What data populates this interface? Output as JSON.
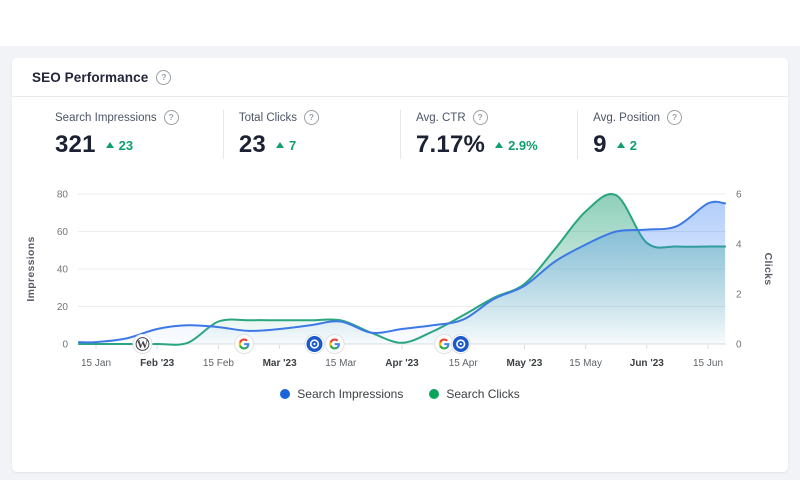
{
  "icons": {
    "help": "?"
  },
  "header": {
    "title": "SEO Performance"
  },
  "kpis": [
    {
      "label": "Search Impressions",
      "value": "321",
      "delta": "23"
    },
    {
      "label": "Total Clicks",
      "value": "23",
      "delta": "7"
    },
    {
      "label": "Avg. CTR",
      "value": "7.17%",
      "delta": "2.9%"
    },
    {
      "label": "Avg. Position",
      "value": "9",
      "delta": "2"
    }
  ],
  "colors": {
    "page_band": "#f2f3f6",
    "delta_green": "#0e9f6e",
    "impressions_line": "#3d79e6",
    "impressions_dot": "#1a63d8",
    "clicks_line": "#2aa580",
    "clicks_dot": "#0aa45c",
    "gridline": "#ebedf0",
    "baseline": "#d9dce1"
  },
  "chart_data": {
    "type": "area",
    "title": "",
    "grid": "horizontal",
    "x_ticks": [
      {
        "label": "15 Jan",
        "bold": false
      },
      {
        "label": "Feb '23",
        "bold": true
      },
      {
        "label": "15 Feb",
        "bold": false
      },
      {
        "label": "Mar '23",
        "bold": true
      },
      {
        "label": "15 Mar",
        "bold": false
      },
      {
        "label": "Apr '23",
        "bold": true
      },
      {
        "label": "15 Apr",
        "bold": false
      },
      {
        "label": "May '23",
        "bold": true
      },
      {
        "label": "15 May",
        "bold": false
      },
      {
        "label": "Jun '23",
        "bold": true
      },
      {
        "label": "15 Jun",
        "bold": false
      }
    ],
    "left_axis": {
      "title": "Impressions",
      "ticks": [
        0,
        20,
        40,
        60,
        80
      ],
      "range": [
        0,
        80
      ]
    },
    "right_axis": {
      "title": "Clicks",
      "ticks": [
        0,
        2,
        4,
        6
      ],
      "range": [
        0,
        6
      ]
    },
    "series": [
      {
        "name": "Search Impressions",
        "axis": "left",
        "line_color": "#3d79e6",
        "fill_color": "#4285f4",
        "x": [
          0,
          0.5,
          1,
          1.5,
          2,
          2.5,
          3,
          3.5,
          4,
          4.5,
          5,
          5.5,
          6,
          6.5,
          7,
          7.5,
          8,
          8.5,
          9,
          9.5,
          10
        ],
        "values": [
          1,
          3,
          8,
          10,
          9,
          7,
          8,
          10,
          12,
          6,
          8,
          10,
          13,
          24,
          31,
          44,
          53,
          60,
          61,
          63,
          75
        ]
      },
      {
        "name": "Search Clicks",
        "axis": "right",
        "line_color": "#2aa580",
        "fill_color": "#34a882",
        "x": [
          0,
          0.5,
          1,
          1.5,
          2,
          2.5,
          3,
          3.5,
          4,
          4.5,
          5,
          5.5,
          6,
          6.5,
          7,
          7.5,
          8,
          8.5,
          9,
          9.5,
          10
        ],
        "values": [
          0,
          0,
          0,
          0.05,
          0.9,
          0.95,
          0.95,
          0.95,
          0.95,
          0.45,
          0.05,
          0.5,
          1.15,
          1.85,
          2.4,
          3.8,
          5.3,
          5.95,
          4.05,
          3.9,
          3.9
        ]
      }
    ],
    "annotations": [
      {
        "icon": "wordpress",
        "t": 0.76
      },
      {
        "icon": "google",
        "t": 2.42
      },
      {
        "icon": "blue-badge",
        "t": 3.57
      },
      {
        "icon": "google",
        "t": 3.9
      },
      {
        "icon": "google",
        "t": 5.69
      },
      {
        "icon": "blue-badge",
        "t": 5.96
      }
    ],
    "legend_position": "bottom-center",
    "legend": [
      {
        "label": "Search Impressions",
        "color": "#1a63d8"
      },
      {
        "label": "Search Clicks",
        "color": "#0aa45c"
      }
    ]
  }
}
